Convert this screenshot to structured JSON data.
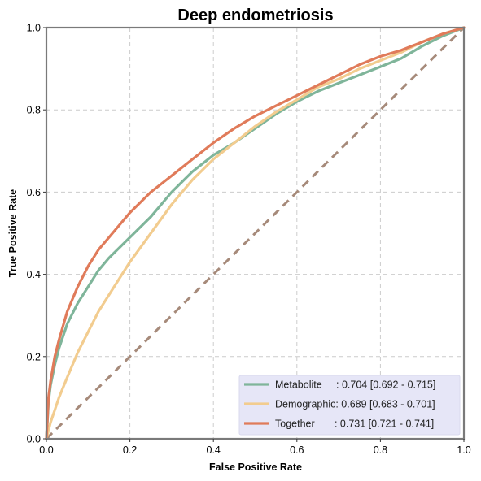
{
  "chart_data": {
    "type": "line",
    "title": "Deep endometriosis",
    "xlabel": "False Positive Rate",
    "ylabel": "True Positive Rate",
    "xlim": [
      0,
      1
    ],
    "ylim": [
      0,
      1
    ],
    "xticks": [
      "0.0",
      "0.2",
      "0.4",
      "0.6",
      "0.8",
      "1.0"
    ],
    "yticks": [
      "0.0",
      "0.2",
      "0.4",
      "0.6",
      "0.8",
      "1.0"
    ],
    "grid": true,
    "legend_position": "bottom-right",
    "colors": {
      "frame": "#7a7a7a",
      "grid": "#cccccc",
      "diagonal": "#a68a7a",
      "legend_bg": "#e6e6f7"
    },
    "diagonal": {
      "x": [
        0,
        1
      ],
      "y": [
        0,
        1
      ],
      "style": "dashed"
    },
    "series": [
      {
        "name": "Metabolite",
        "legend_label": "Metabolite     : 0.704 [0.692 - 0.715]",
        "color": "#7fb59a",
        "x": [
          0,
          0.005,
          0.01,
          0.02,
          0.03,
          0.05,
          0.075,
          0.1,
          0.125,
          0.15,
          0.2,
          0.25,
          0.3,
          0.35,
          0.4,
          0.45,
          0.5,
          0.55,
          0.6,
          0.65,
          0.7,
          0.75,
          0.8,
          0.85,
          0.9,
          0.95,
          1.0
        ],
        "y": [
          0,
          0.09,
          0.13,
          0.18,
          0.22,
          0.28,
          0.33,
          0.37,
          0.41,
          0.44,
          0.49,
          0.54,
          0.6,
          0.65,
          0.69,
          0.72,
          0.755,
          0.79,
          0.82,
          0.845,
          0.865,
          0.885,
          0.905,
          0.925,
          0.955,
          0.98,
          1.0
        ]
      },
      {
        "name": "Demographic",
        "legend_label": "Demographic: 0.689 [0.683 - 0.701]",
        "color": "#f2cc8f",
        "x": [
          0,
          0.005,
          0.01,
          0.02,
          0.03,
          0.05,
          0.075,
          0.1,
          0.125,
          0.15,
          0.2,
          0.25,
          0.3,
          0.35,
          0.4,
          0.45,
          0.5,
          0.55,
          0.6,
          0.65,
          0.7,
          0.75,
          0.8,
          0.85,
          0.9,
          0.95,
          1.0
        ],
        "y": [
          0,
          0.02,
          0.04,
          0.07,
          0.1,
          0.15,
          0.21,
          0.26,
          0.31,
          0.35,
          0.43,
          0.5,
          0.57,
          0.63,
          0.68,
          0.72,
          0.76,
          0.795,
          0.825,
          0.855,
          0.875,
          0.9,
          0.92,
          0.94,
          0.965,
          0.985,
          1.0
        ]
      },
      {
        "name": "Together",
        "legend_label": "Together       : 0.731 [0.721 - 0.741]",
        "color": "#e07b5a",
        "x": [
          0,
          0.005,
          0.01,
          0.02,
          0.03,
          0.05,
          0.075,
          0.1,
          0.125,
          0.15,
          0.2,
          0.25,
          0.3,
          0.35,
          0.4,
          0.45,
          0.5,
          0.55,
          0.6,
          0.65,
          0.7,
          0.75,
          0.8,
          0.85,
          0.9,
          0.95,
          1.0
        ],
        "y": [
          0,
          0.1,
          0.14,
          0.2,
          0.24,
          0.31,
          0.37,
          0.42,
          0.46,
          0.49,
          0.55,
          0.6,
          0.64,
          0.68,
          0.72,
          0.755,
          0.785,
          0.81,
          0.835,
          0.86,
          0.885,
          0.91,
          0.93,
          0.945,
          0.965,
          0.985,
          1.0
        ]
      }
    ]
  }
}
